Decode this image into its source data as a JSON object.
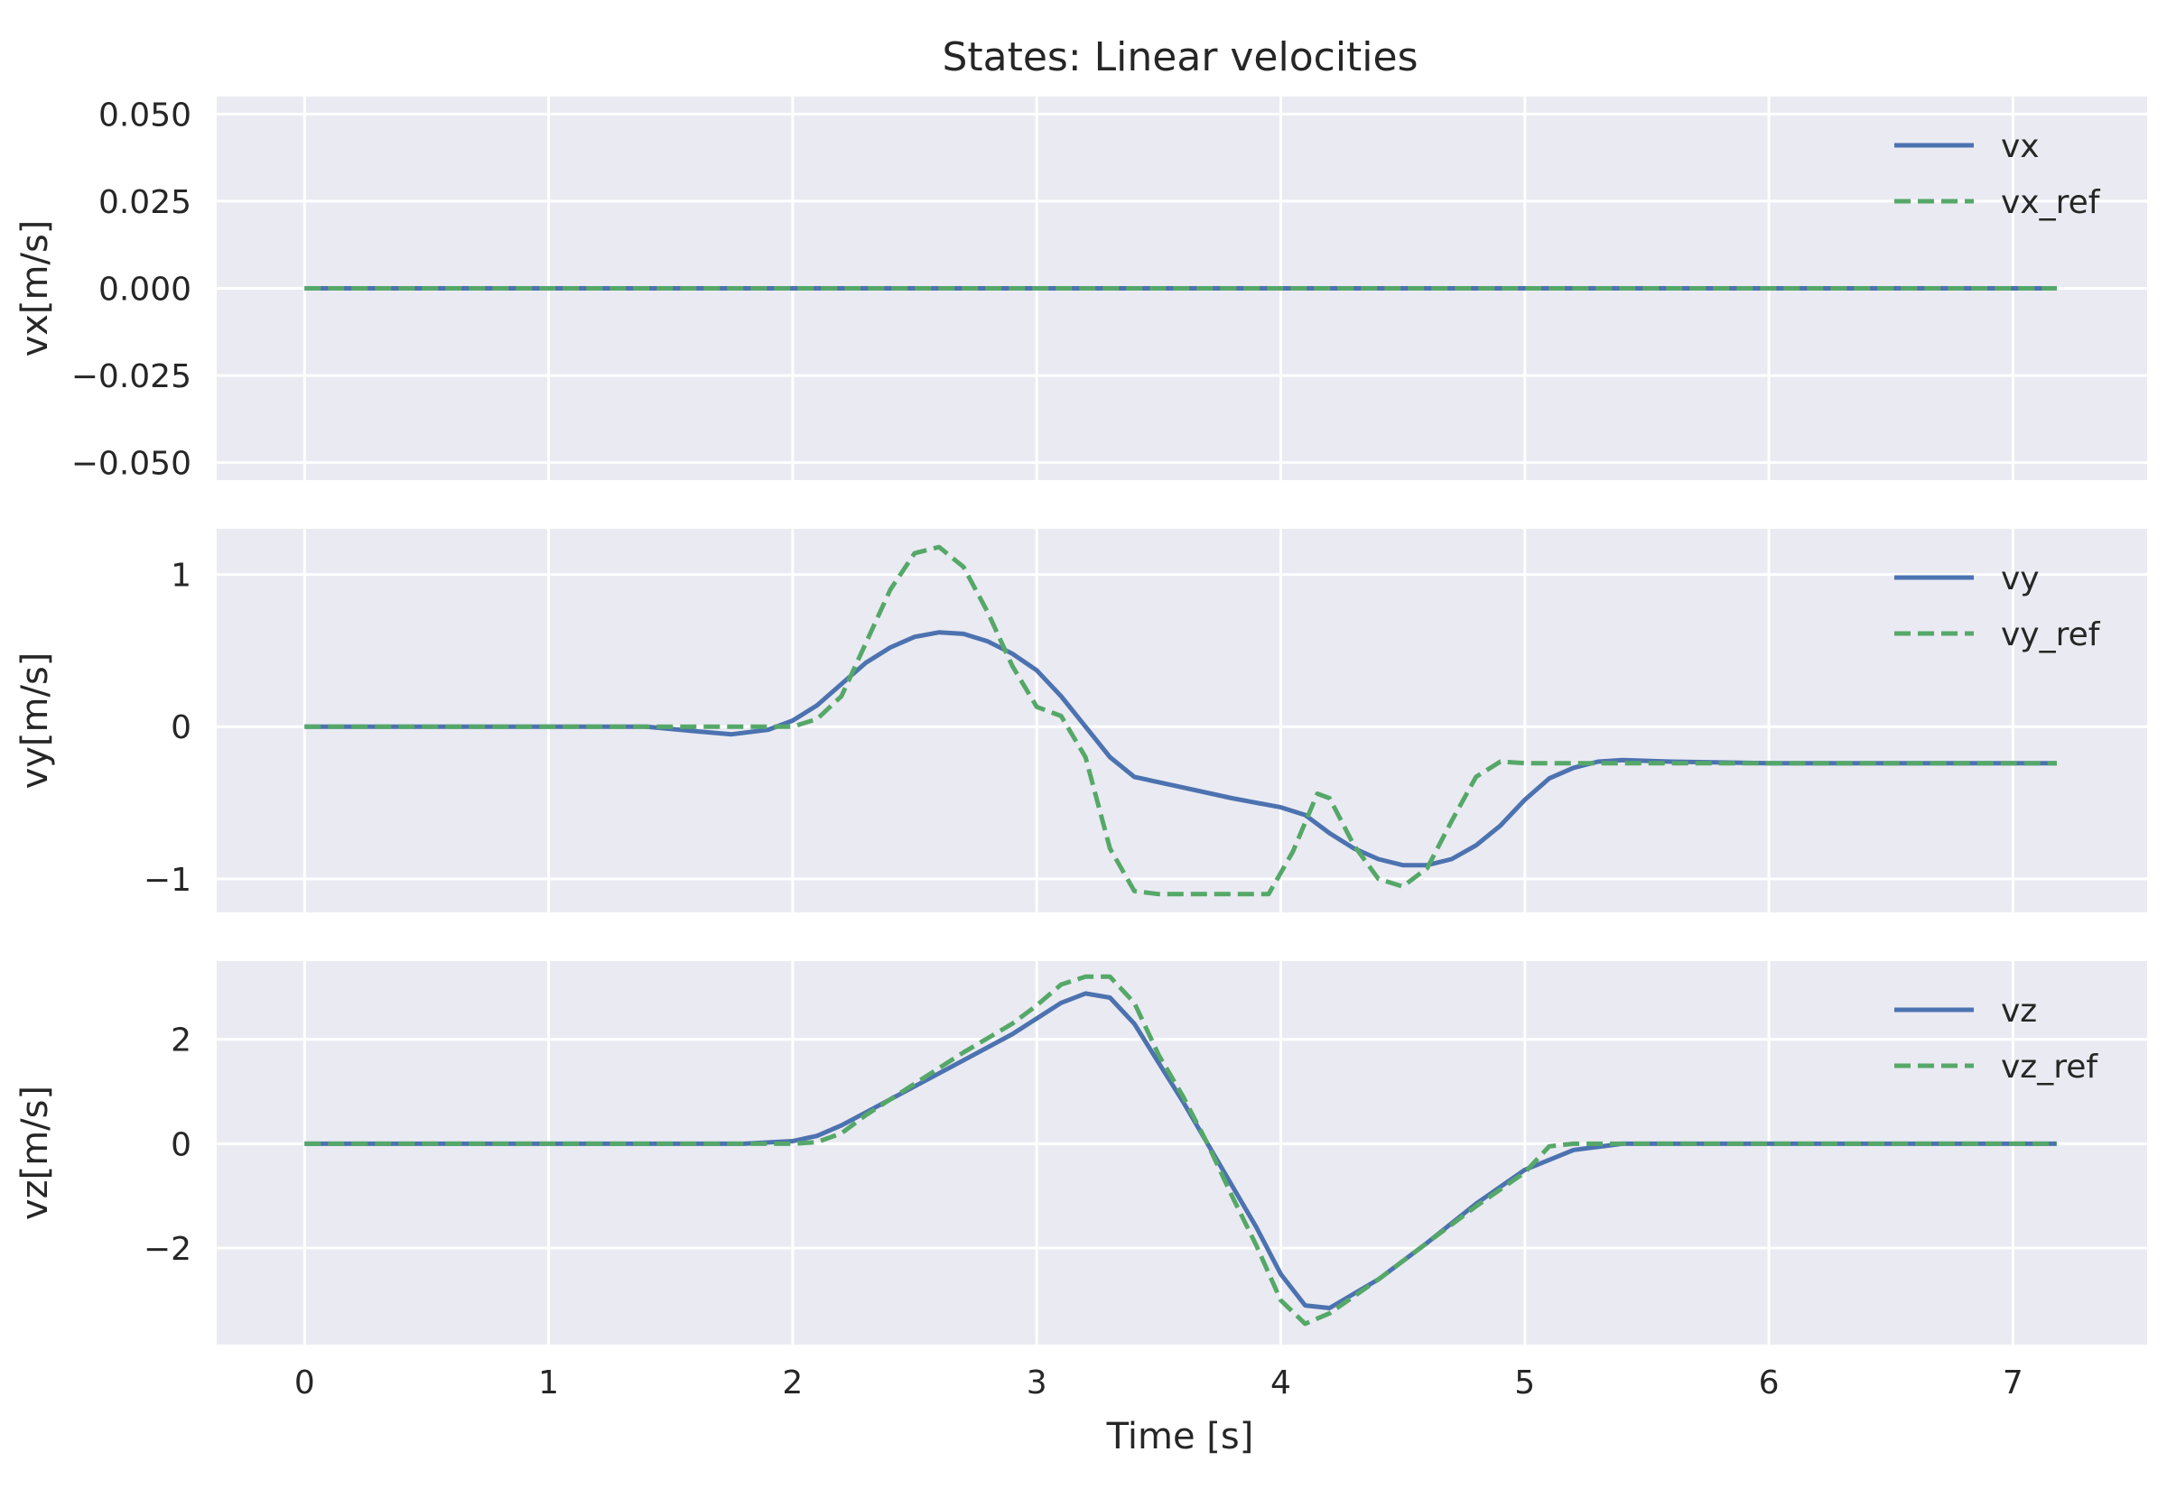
{
  "chart_data": {
    "type": "line",
    "title": "States: Linear velocities",
    "xlabel": "Time [s]",
    "xlim": [
      -0.36,
      7.55
    ],
    "xticks": [
      0,
      1,
      2,
      3,
      4,
      5,
      6,
      7
    ],
    "grid": true,
    "legend_position": "upper right",
    "colors": {
      "actual": "#4c72b0",
      "reference": "#55a868",
      "background": "#eaeaf2"
    },
    "panels": [
      {
        "ylabel": "vx[m/s]",
        "ylim": [
          -0.055,
          0.055
        ],
        "yticks": [
          0.05,
          0.025,
          0.0,
          -0.025,
          -0.05
        ],
        "ytick_labels": [
          "0.050",
          "0.025",
          "0.000",
          "−0.025",
          "−0.050"
        ],
        "series": [
          {
            "name": "vx",
            "style": "solid",
            "x": [
              0,
              7.18
            ],
            "y": [
              0,
              0
            ]
          },
          {
            "name": "vx_ref",
            "style": "dashed",
            "x": [
              0,
              7.18
            ],
            "y": [
              0,
              0
            ]
          }
        ]
      },
      {
        "ylabel": "vy[m/s]",
        "ylim": [
          -1.22,
          1.3
        ],
        "yticks": [
          1,
          0,
          -1
        ],
        "ytick_labels": [
          "1",
          "0",
          "−1"
        ],
        "series": [
          {
            "name": "vy",
            "style": "solid",
            "x": [
              0,
              1.0,
              1.4,
              1.6,
              1.75,
              1.9,
              2.0,
              2.1,
              2.2,
              2.3,
              2.4,
              2.5,
              2.6,
              2.7,
              2.8,
              2.9,
              3.0,
              3.1,
              3.2,
              3.3,
              3.4,
              3.6,
              3.8,
              4.0,
              4.1,
              4.2,
              4.3,
              4.4,
              4.5,
              4.6,
              4.7,
              4.8,
              4.9,
              5.0,
              5.1,
              5.2,
              5.3,
              5.4,
              5.6,
              6.0,
              6.5,
              7.18
            ],
            "y": [
              0,
              0,
              0,
              -0.03,
              -0.05,
              -0.02,
              0.04,
              0.14,
              0.28,
              0.42,
              0.52,
              0.59,
              0.62,
              0.61,
              0.56,
              0.48,
              0.37,
              0.2,
              0.0,
              -0.2,
              -0.33,
              -0.4,
              -0.47,
              -0.53,
              -0.58,
              -0.7,
              -0.8,
              -0.87,
              -0.91,
              -0.91,
              -0.87,
              -0.78,
              -0.65,
              -0.48,
              -0.34,
              -0.27,
              -0.23,
              -0.22,
              -0.23,
              -0.24,
              -0.24,
              -0.24
            ]
          },
          {
            "name": "vy_ref",
            "style": "dashed",
            "x": [
              0,
              2.0,
              2.1,
              2.2,
              2.3,
              2.4,
              2.5,
              2.6,
              2.7,
              2.8,
              2.9,
              3.0,
              3.1,
              3.2,
              3.3,
              3.4,
              3.5,
              3.6,
              3.8,
              3.95,
              4.05,
              4.15,
              4.2,
              4.3,
              4.4,
              4.5,
              4.6,
              4.7,
              4.8,
              4.9,
              5.0,
              5.2,
              5.6,
              7.18
            ],
            "y": [
              0,
              0,
              0.05,
              0.2,
              0.55,
              0.9,
              1.14,
              1.18,
              1.05,
              0.75,
              0.4,
              0.13,
              0.07,
              -0.2,
              -0.8,
              -1.08,
              -1.1,
              -1.1,
              -1.1,
              -1.1,
              -0.82,
              -0.44,
              -0.47,
              -0.78,
              -1.0,
              -1.05,
              -0.93,
              -0.62,
              -0.33,
              -0.23,
              -0.24,
              -0.24,
              -0.24,
              -0.24
            ]
          }
        ]
      },
      {
        "ylabel": "vz[m/s]",
        "ylim": [
          -3.85,
          3.5
        ],
        "yticks": [
          2,
          0,
          -2
        ],
        "ytick_labels": [
          "2",
          "0",
          "−2"
        ],
        "series": [
          {
            "name": "vz",
            "style": "solid",
            "x": [
              0,
              1.8,
              2.0,
              2.1,
              2.2,
              2.3,
              2.5,
              2.7,
              2.9,
              3.0,
              3.1,
              3.2,
              3.3,
              3.4,
              3.5,
              3.6,
              3.7,
              3.8,
              3.9,
              4.0,
              4.1,
              4.2,
              4.4,
              4.6,
              4.8,
              5.0,
              5.2,
              5.4,
              6.0,
              7.18
            ],
            "y": [
              0,
              0,
              0.05,
              0.15,
              0.35,
              0.6,
              1.1,
              1.6,
              2.1,
              2.4,
              2.7,
              2.88,
              2.8,
              2.3,
              1.55,
              0.8,
              0.0,
              -0.8,
              -1.6,
              -2.5,
              -3.1,
              -3.15,
              -2.6,
              -1.9,
              -1.15,
              -0.5,
              -0.12,
              0.0,
              0.0,
              0.0
            ]
          },
          {
            "name": "vz_ref",
            "style": "dashed",
            "x": [
              0,
              2.0,
              2.1,
              2.2,
              2.3,
              2.5,
              2.7,
              2.9,
              3.0,
              3.1,
              3.2,
              3.3,
              3.4,
              3.5,
              3.6,
              3.7,
              3.8,
              3.9,
              4.0,
              4.1,
              4.2,
              4.4,
              4.6,
              4.8,
              5.0,
              5.1,
              5.2,
              6.0,
              7.18
            ],
            "y": [
              0,
              0,
              0.03,
              0.2,
              0.55,
              1.15,
              1.75,
              2.3,
              2.65,
              3.05,
              3.2,
              3.2,
              2.7,
              1.7,
              0.9,
              0.0,
              -1.0,
              -1.95,
              -3.0,
              -3.45,
              -3.25,
              -2.6,
              -1.9,
              -1.2,
              -0.55,
              -0.05,
              0.0,
              0.0,
              0.0
            ]
          }
        ]
      }
    ]
  }
}
